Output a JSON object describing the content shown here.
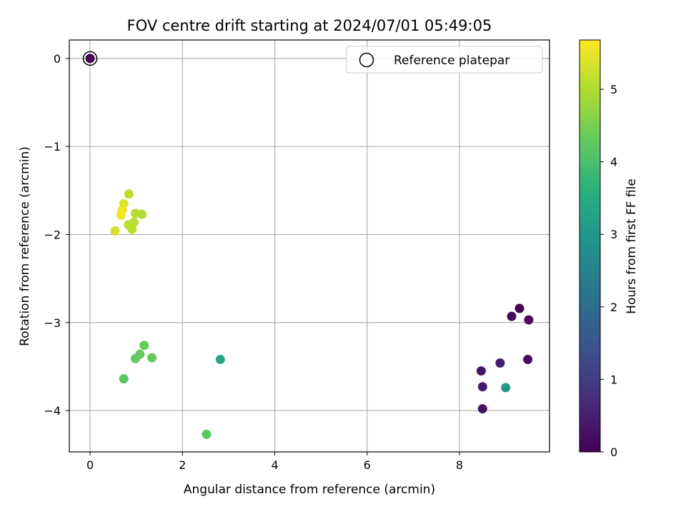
{
  "chart_data": {
    "type": "scatter",
    "title": "FOV centre drift starting at 2024/07/01 05:49:05",
    "xlabel": "Angular distance from reference (arcmin)",
    "ylabel": "Rotation from reference (arcmin)",
    "xlim": [
      -0.45,
      9.95
    ],
    "ylim": [
      -4.47,
      0.21
    ],
    "xticks": [
      0,
      2,
      4,
      6,
      8
    ],
    "xtick_labels": [
      "0",
      "2",
      "4",
      "6",
      "8"
    ],
    "yticks": [
      0,
      -1,
      -2,
      -3,
      -4
    ],
    "ytick_labels": [
      "0",
      "−1",
      "−2",
      "−3",
      "−4"
    ],
    "grid": true,
    "legend": {
      "placement": "top-right",
      "entries": [
        "Reference platepar"
      ]
    },
    "colorbar": {
      "label": "Hours from first FF file",
      "colormap": "viridis",
      "range": [
        0,
        5.68
      ],
      "ticks": [
        0,
        1,
        2,
        3,
        4,
        5
      ],
      "tick_labels": [
        "0",
        "1",
        "2",
        "3",
        "4",
        "5"
      ]
    },
    "reference_point": {
      "x": 0,
      "y": 0
    },
    "series": [
      {
        "points": [
          {
            "x": 0.0,
            "y": 0.0,
            "c": 0.0
          },
          {
            "x": 9.3,
            "y": -2.84,
            "c": 0.05
          },
          {
            "x": 9.13,
            "y": -2.93,
            "c": 0.1
          },
          {
            "x": 9.5,
            "y": -2.97,
            "c": 0.15
          },
          {
            "x": 9.48,
            "y": -3.42,
            "c": 0.2
          },
          {
            "x": 8.88,
            "y": -3.46,
            "c": 0.4
          },
          {
            "x": 8.47,
            "y": -3.55,
            "c": 0.35
          },
          {
            "x": 8.5,
            "y": -3.73,
            "c": 0.45
          },
          {
            "x": 8.5,
            "y": -3.98,
            "c": 0.3
          },
          {
            "x": 9.0,
            "y": -3.74,
            "c": 3.0
          },
          {
            "x": 2.82,
            "y": -3.42,
            "c": 3.3
          },
          {
            "x": 2.52,
            "y": -4.27,
            "c": 4.2
          },
          {
            "x": 0.73,
            "y": -3.64,
            "c": 4.2
          },
          {
            "x": 0.98,
            "y": -3.41,
            "c": 4.3
          },
          {
            "x": 1.08,
            "y": -3.36,
            "c": 4.3
          },
          {
            "x": 1.17,
            "y": -3.26,
            "c": 4.35
          },
          {
            "x": 1.34,
            "y": -3.4,
            "c": 4.3
          },
          {
            "x": 0.84,
            "y": -1.54,
            "c": 5.1
          },
          {
            "x": 0.73,
            "y": -1.65,
            "c": 5.4
          },
          {
            "x": 0.7,
            "y": -1.72,
            "c": 5.5
          },
          {
            "x": 0.67,
            "y": -1.78,
            "c": 5.6
          },
          {
            "x": 0.98,
            "y": -1.76,
            "c": 5.05
          },
          {
            "x": 1.12,
            "y": -1.77,
            "c": 5.0
          },
          {
            "x": 0.95,
            "y": -1.86,
            "c": 5.05
          },
          {
            "x": 0.83,
            "y": -1.89,
            "c": 5.1
          },
          {
            "x": 0.91,
            "y": -1.94,
            "c": 5.1
          },
          {
            "x": 0.54,
            "y": -1.96,
            "c": 5.3
          }
        ]
      }
    ]
  }
}
